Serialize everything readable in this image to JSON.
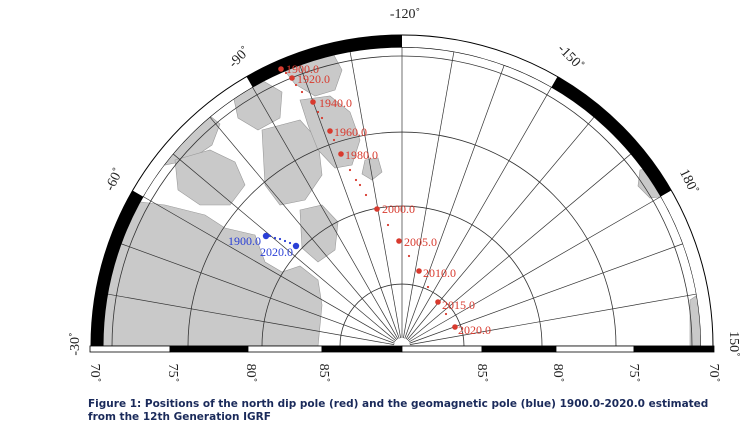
{
  "map": {
    "colors": {
      "land": "#c9c9c9",
      "ocean": "#ffffff",
      "grid": "#333333",
      "frame": "#000000",
      "dip_pole": "#d83a2e",
      "geomagnetic_pole": "#2a3fd6"
    },
    "longitude_labels": [
      "-120˚",
      "-90˚",
      "-150˚",
      "-60˚",
      "180˚",
      "-30˚",
      "150˚"
    ],
    "latitude_labels_left": [
      "70˚",
      "75˚",
      "80˚",
      "85˚"
    ],
    "latitude_labels_right": [
      "85˚",
      "80˚",
      "75˚",
      "70˚"
    ],
    "dip_pole_labels": [
      "1900.0",
      "1920.0",
      "1940.0",
      "1960.0",
      "1980.0",
      "2000.0",
      "2005.0",
      "2010.0",
      "2015.0",
      "2020.0"
    ],
    "geomagnetic_pole_labels": [
      "1900.0",
      "2020.0"
    ]
  },
  "caption": {
    "text": "Figure 1: Positions of the north dip pole (red) and the geomagnetic pole (blue) 1900.0-2020.0 estimated from the 12th Generation IGRF"
  }
}
